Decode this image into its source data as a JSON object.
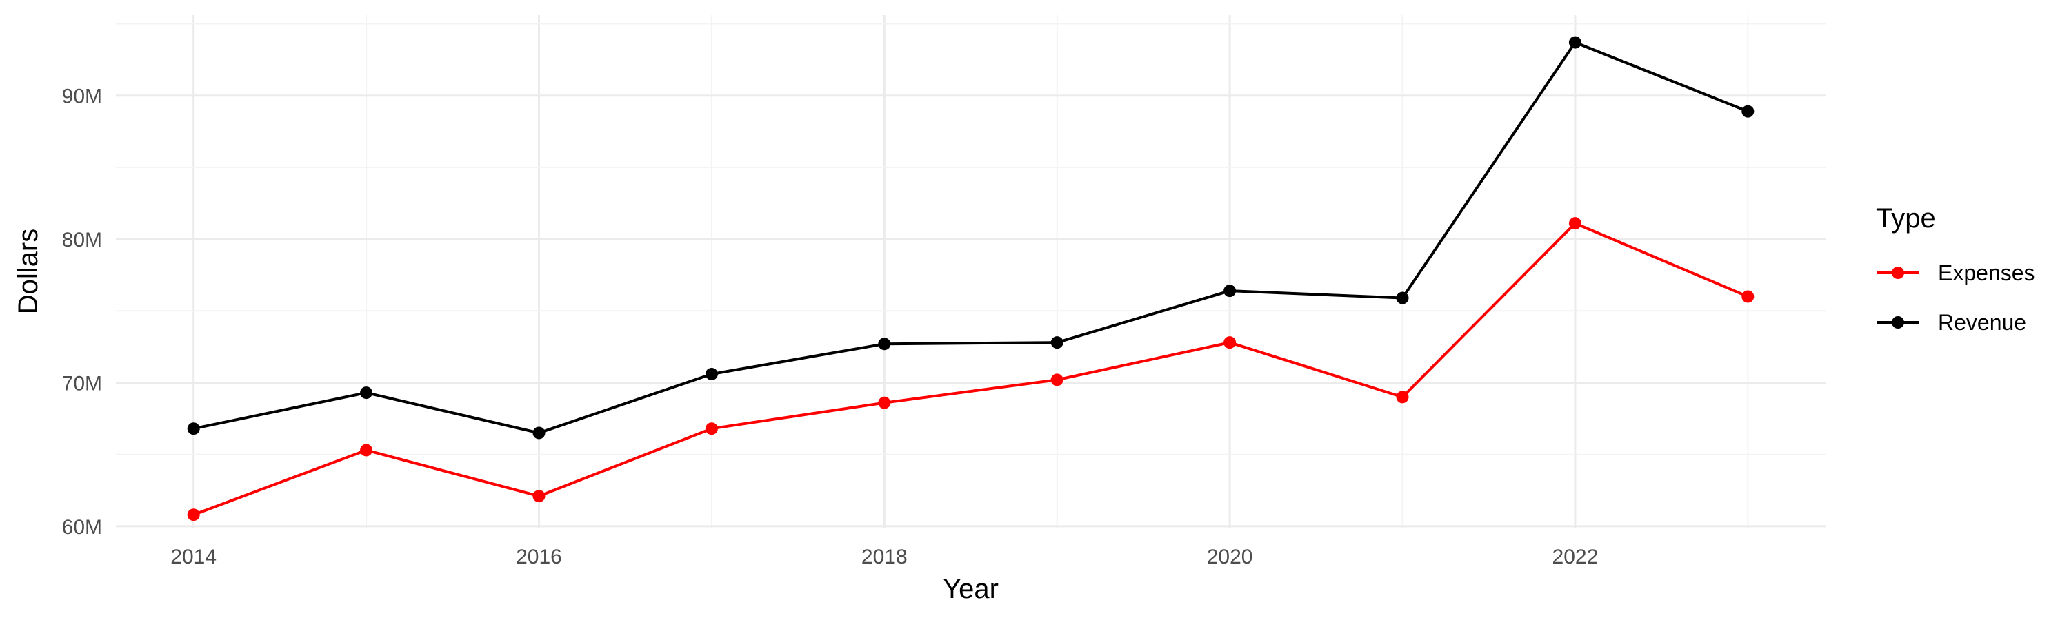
{
  "chart_data": {
    "type": "line",
    "title": "",
    "xlabel": "Year",
    "ylabel": "Dollars",
    "x": [
      2014,
      2015,
      2016,
      2017,
      2018,
      2019,
      2020,
      2021,
      2022,
      2023
    ],
    "x_ticks": [
      "2014",
      "2016",
      "2018",
      "2020",
      "2022"
    ],
    "y_ticks": [
      "60M",
      "70M",
      "80M",
      "90M"
    ],
    "y_unit": "M",
    "xlim": [
      2013.55,
      2023.45
    ],
    "ylim": [
      59.9,
      95.6
    ],
    "grid": true,
    "legend": {
      "title": "Type",
      "placement": "right"
    },
    "series": [
      {
        "name": "Expenses",
        "color": "#ff0000",
        "values": [
          60.8,
          65.3,
          62.1,
          66.8,
          68.6,
          70.2,
          72.8,
          69.0,
          81.1,
          76.0
        ]
      },
      {
        "name": "Revenue",
        "color": "#000000",
        "values": [
          66.8,
          69.3,
          66.5,
          70.6,
          72.7,
          72.8,
          76.4,
          75.9,
          93.7,
          88.9
        ]
      }
    ]
  }
}
